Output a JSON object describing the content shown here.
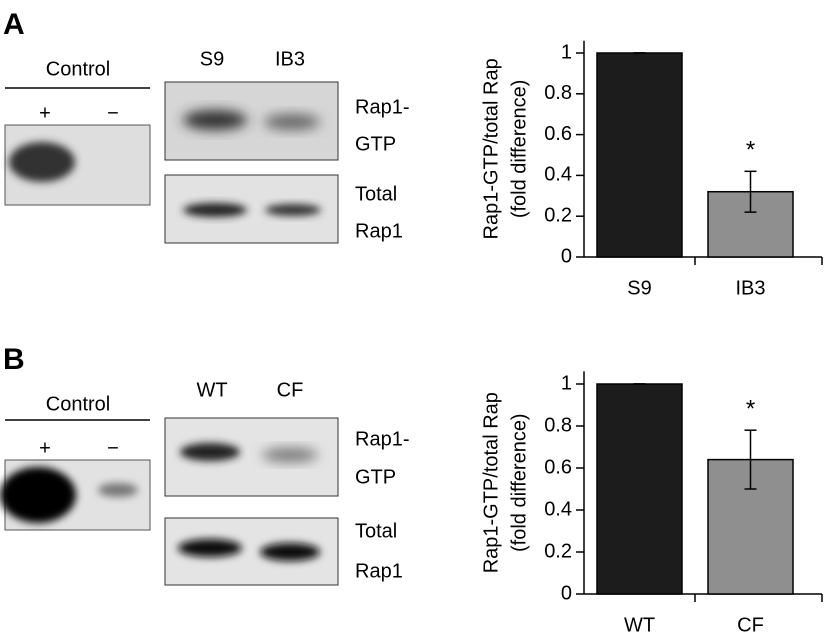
{
  "panels": [
    {
      "letter": "A",
      "control_label": "Control",
      "control_lanes": [
        "+",
        "−"
      ],
      "lanes": [
        "S9",
        "IB3"
      ],
      "blot_labels": [
        "Rap1-",
        "GTP",
        "Total",
        "Rap1"
      ]
    },
    {
      "letter": "B",
      "control_label": "Control",
      "control_lanes": [
        "+",
        "−"
      ],
      "lanes": [
        "WT",
        "CF"
      ],
      "blot_labels": [
        "Rap1-",
        "GTP",
        "Total",
        "Rap1"
      ]
    }
  ],
  "chart_data": [
    {
      "type": "bar",
      "ylabel": [
        "Rap1-GTP/total Rap",
        "(fold difference)"
      ],
      "categories": [
        "S9",
        "IB3"
      ],
      "values": [
        1,
        0.32
      ],
      "errors": [
        0,
        0.1
      ],
      "colors": [
        "#1c1c1c",
        "#8f8f8f"
      ],
      "annotations": [
        {
          "category": 1,
          "text": "*"
        }
      ],
      "ylim": [
        0,
        1.06
      ],
      "yticks": [
        0,
        0.2,
        0.4,
        0.6,
        0.8,
        1
      ]
    },
    {
      "type": "bar",
      "ylabel": [
        "Rap1-GTP/total Rap",
        "(fold difference)"
      ],
      "categories": [
        "WT",
        "CF"
      ],
      "values": [
        1,
        0.64
      ],
      "errors": [
        0,
        0.14
      ],
      "colors": [
        "#1c1c1c",
        "#8f8f8f"
      ],
      "annotations": [
        {
          "category": 1,
          "text": "*"
        }
      ],
      "ylim": [
        0,
        1.06
      ],
      "yticks": [
        0,
        0.2,
        0.4,
        0.6,
        0.8,
        1
      ]
    }
  ]
}
